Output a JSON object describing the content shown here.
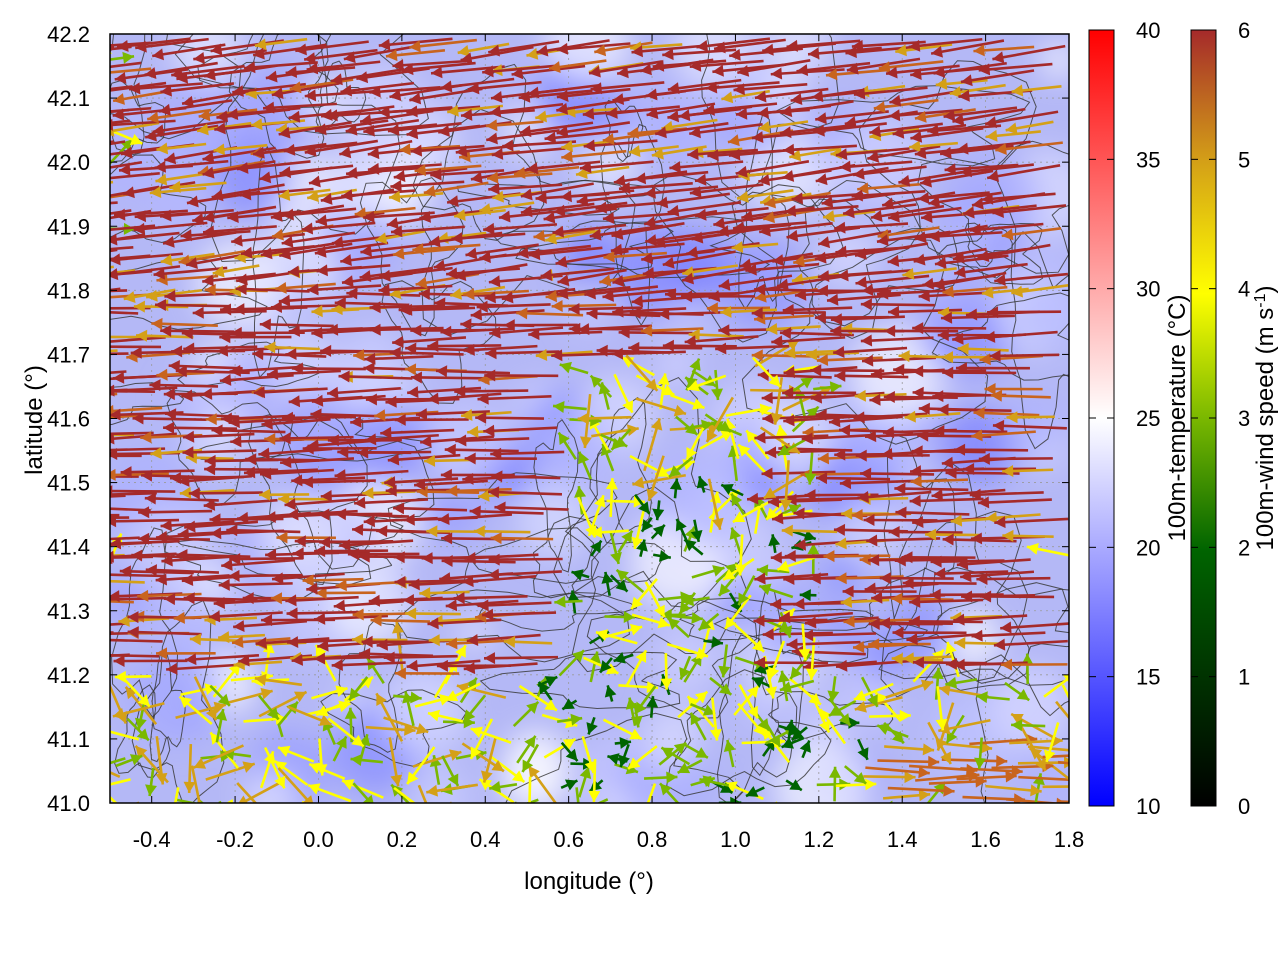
{
  "chart_data": {
    "type": "heatmap",
    "subtype": "vector-field-with-contours",
    "xlabel": "longitude (°)",
    "ylabel": "latitude (°)",
    "xlim": [
      -0.5,
      1.8
    ],
    "ylim": [
      41.0,
      42.2
    ],
    "x_ticks": [
      "-0.4",
      "-0.2",
      "0.0",
      "0.2",
      "0.4",
      "0.6",
      "0.8",
      "1.0",
      "1.2",
      "1.4",
      "1.6",
      "1.8"
    ],
    "y_ticks": [
      "41.0",
      "41.1",
      "41.2",
      "41.3",
      "41.4",
      "41.5",
      "41.6",
      "41.7",
      "41.8",
      "41.9",
      "42.0",
      "42.1",
      "42.2"
    ],
    "grid": true,
    "temperature_colorbar": {
      "label": "100m-temperature (°C)",
      "range": [
        10,
        40
      ],
      "ticks": [
        "10",
        "15",
        "20",
        "25",
        "30",
        "35",
        "40"
      ],
      "colors": [
        "#0000ff",
        "#ffffff",
        "#ff0000"
      ]
    },
    "wind_colorbar": {
      "label": "100m-wind speed (m s",
      "label_superscript": "-1",
      "label_suffix": ")",
      "range": [
        0,
        6
      ],
      "ticks": [
        "0",
        "1",
        "2",
        "3",
        "4",
        "5",
        "6"
      ],
      "colors": [
        "#000000",
        "#006400",
        "#7ab800",
        "#ffff00",
        "#d4a017",
        "#c8641e",
        "#a52a2a"
      ]
    },
    "temperature_field_range_approx": [
      15,
      25
    ],
    "wind_regions": [
      {
        "lon": [
          -0.5,
          0.6
        ],
        "lat": [
          41.2,
          42.2
        ],
        "speed": 6,
        "direction": "from east (arrows point west)"
      },
      {
        "lon": [
          0.6,
          1.2
        ],
        "lat": [
          41.7,
          42.2
        ],
        "speed": 6,
        "direction": "from east-northeast"
      },
      {
        "lon": [
          1.2,
          1.8
        ],
        "lat": [
          41.2,
          42.2
        ],
        "speed": 6,
        "direction": "from east"
      },
      {
        "lon": [
          0.5,
          1.3
        ],
        "lat": [
          41.0,
          41.5
        ],
        "speed": 2,
        "direction": "variable"
      },
      {
        "lon": [
          -0.5,
          0.5
        ],
        "lat": [
          41.0,
          41.2
        ],
        "speed": 3,
        "direction": "variable"
      },
      {
        "lon": [
          1.3,
          1.8
        ],
        "lat": [
          41.0,
          41.1
        ],
        "speed": 4,
        "direction": "from west"
      }
    ]
  }
}
